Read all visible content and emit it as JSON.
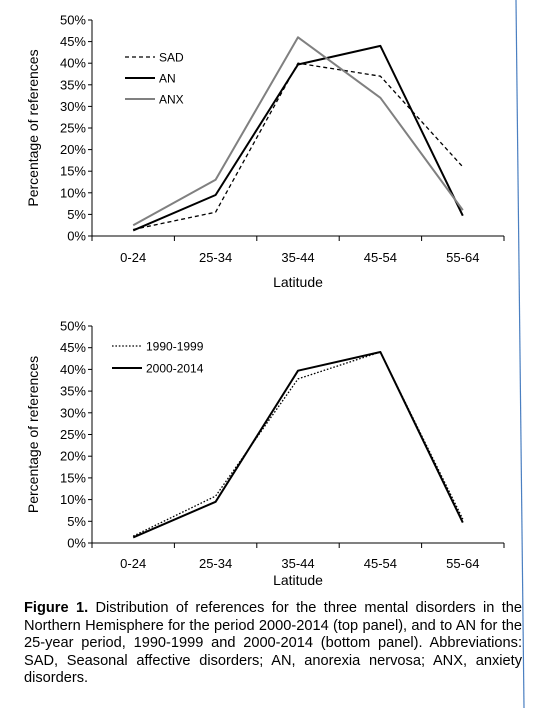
{
  "chart_data": [
    {
      "type": "line",
      "categories": [
        "0-24",
        "25-34",
        "35-44",
        "45-54",
        "55-64"
      ],
      "xlabel": "Latitude",
      "ylabel": "Percentage of references",
      "ylim": [
        0,
        50
      ],
      "yticks": [
        "0%",
        "5%",
        "10%",
        "15%",
        "20%",
        "25%",
        "30%",
        "35%",
        "40%",
        "45%",
        "50%"
      ],
      "grid": false,
      "legend": "top-left",
      "series": [
        {
          "name": "SAD",
          "values": [
            1.5,
            5.5,
            40,
            37,
            16
          ],
          "color": "#000000",
          "style": "dashed"
        },
        {
          "name": "AN",
          "values": [
            1.3,
            9.5,
            39.7,
            44,
            4.7
          ],
          "color": "#000000",
          "style": "solid"
        },
        {
          "name": "ANX",
          "values": [
            2.5,
            13,
            46,
            32,
            6
          ],
          "color": "#808080",
          "style": "solid"
        }
      ]
    },
    {
      "type": "line",
      "categories": [
        "0-24",
        "25-34",
        "35-44",
        "45-54",
        "55-64"
      ],
      "xlabel": "Latitude",
      "ylabel": "Percentage of references",
      "ylim": [
        0,
        50
      ],
      "yticks": [
        "0%",
        "5%",
        "10%",
        "15%",
        "20%",
        "25%",
        "30%",
        "35%",
        "40%",
        "45%",
        "50%"
      ],
      "grid": false,
      "legend": "top-left",
      "series": [
        {
          "name": "1990-1999",
          "values": [
            1.6,
            10.8,
            37.8,
            44,
            5.5
          ],
          "color": "#000000",
          "style": "dotted"
        },
        {
          "name": "2000-2014",
          "values": [
            1.3,
            9.5,
            39.7,
            44,
            4.7
          ],
          "color": "#000000",
          "style": "solid"
        }
      ]
    }
  ],
  "caption": {
    "label": "Figure 1.",
    "text": " Distribution of references for the three mental disorders in the Northern Hemisphere for the period 2000-2014 (top panel), and to AN for the 25-year period, 1990-1999 and 2000-2014 (bottom panel). Abbreviations: SAD, Seasonal affective disorders; AN, anorexia nervosa; ANX, anxiety disorders."
  }
}
